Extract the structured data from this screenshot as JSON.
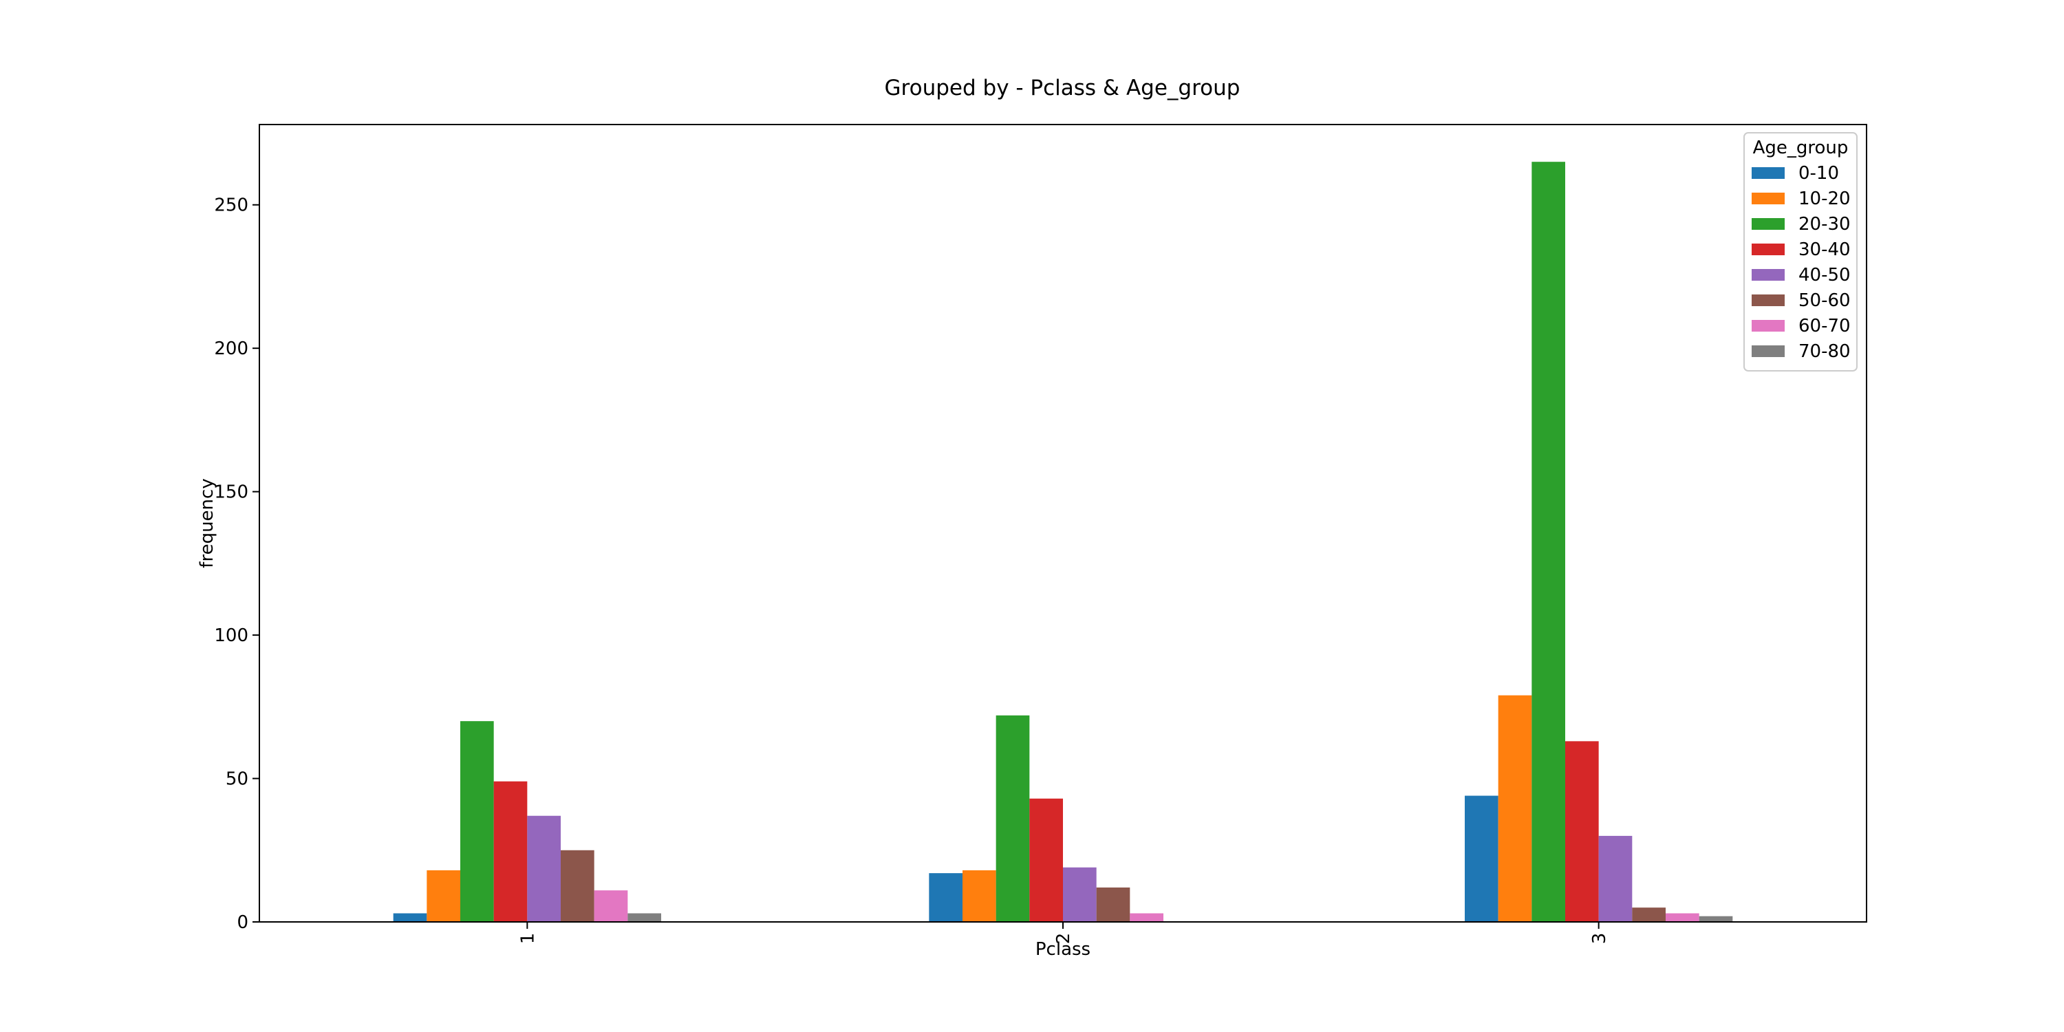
{
  "chart_data": {
    "type": "bar",
    "title": "Grouped by - Pclass & Age_group",
    "xlabel": "Pclass",
    "ylabel": "frequency",
    "categories": [
      "1",
      "2",
      "3"
    ],
    "ylim": [
      0,
      278
    ],
    "yticks": [
      0,
      50,
      100,
      150,
      200,
      250
    ],
    "grid": false,
    "legend": {
      "title": "Age_group",
      "position": "top-right"
    },
    "series": [
      {
        "name": "0-10",
        "color": "#1f77b4",
        "values": [
          3,
          17,
          44
        ]
      },
      {
        "name": "10-20",
        "color": "#ff7f0e",
        "values": [
          18,
          18,
          79
        ]
      },
      {
        "name": "20-30",
        "color": "#2ca02c",
        "values": [
          70,
          72,
          265
        ]
      },
      {
        "name": "30-40",
        "color": "#d62728",
        "values": [
          49,
          43,
          63
        ]
      },
      {
        "name": "40-50",
        "color": "#9467bd",
        "values": [
          37,
          19,
          30
        ]
      },
      {
        "name": "50-60",
        "color": "#8c564b",
        "values": [
          25,
          12,
          5
        ]
      },
      {
        "name": "60-70",
        "color": "#e377c2",
        "values": [
          11,
          3,
          3
        ]
      },
      {
        "name": "70-80",
        "color": "#7f7f7f",
        "values": [
          3,
          0,
          2
        ]
      }
    ]
  }
}
